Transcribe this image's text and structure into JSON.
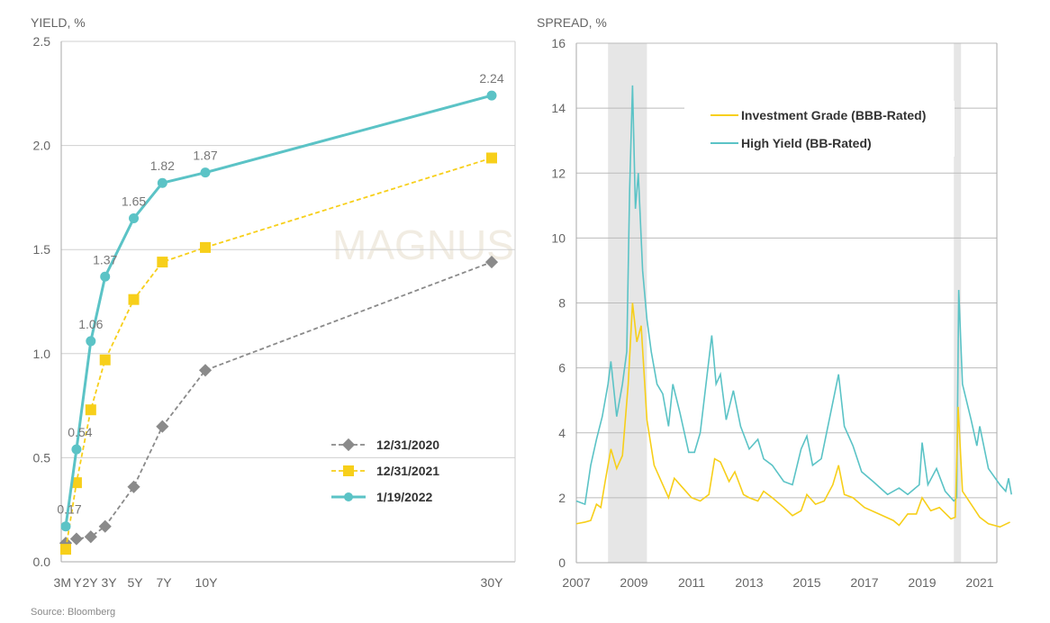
{
  "source": "Source: Bloomberg",
  "watermark": "MAGNUS",
  "colors": {
    "teal": "#5bc3c6",
    "yellow": "#f7cf1a",
    "gray": "#8a8a8a",
    "grid": "#c8c8c8",
    "recession": "#e4e4e4"
  },
  "chart_data": [
    {
      "type": "line",
      "title": "YIELD, %",
      "xlabel": "",
      "ylabel": "YIELD, %",
      "ylim": [
        0,
        2.5
      ],
      "yticks": [
        "0.0",
        "0.5",
        "1.0",
        "1.5",
        "2.0",
        "2.5"
      ],
      "x_years": [
        0.25,
        1,
        2,
        3,
        5,
        7,
        10,
        30
      ],
      "tick_labels": [
        "3M",
        "Y",
        "2Y",
        "3Y",
        "5Y",
        "7Y",
        "10Y",
        "30Y"
      ],
      "legend_position": "bottom-right",
      "series": [
        {
          "name": "12/31/2020",
          "color": "#8a8a8a",
          "marker": "diamond",
          "dashed": true,
          "values": [
            0.09,
            0.11,
            0.12,
            0.17,
            0.36,
            0.65,
            0.92,
            1.44
          ]
        },
        {
          "name": "12/31/2021",
          "color": "#f7cf1a",
          "marker": "square",
          "dashed": true,
          "values": [
            0.06,
            0.38,
            0.73,
            0.97,
            1.26,
            1.44,
            1.51,
            1.94
          ]
        },
        {
          "name": "1/19/2022",
          "color": "#5bc3c6",
          "marker": "circle",
          "dashed": false,
          "values": [
            0.17,
            0.54,
            1.06,
            1.37,
            1.65,
            1.82,
            1.87,
            2.24
          ],
          "labels": [
            "0.17",
            "0.54",
            "1.06",
            "1.37",
            "1.65",
            "1.82",
            "1.87",
            "2.24"
          ]
        }
      ]
    },
    {
      "type": "line",
      "title": "SPREAD, %",
      "xlabel": "",
      "ylabel": "SPREAD, %",
      "ylim": [
        0,
        16
      ],
      "xlim": [
        2007,
        2022.6
      ],
      "yticks": [
        "0",
        "2",
        "4",
        "6",
        "8",
        "10",
        "12",
        "14",
        "16"
      ],
      "xticks": [
        "2007",
        "2009",
        "2011",
        "2013",
        "2015",
        "2017",
        "2019",
        "2021"
      ],
      "legend_position": "top-center",
      "recessions": [
        [
          2008.1,
          2009.45
        ],
        [
          2020.1,
          2020.35
        ]
      ],
      "series": [
        {
          "name": "Investment Grade (BBB-Rated)",
          "color": "#f7cf1a",
          "points": [
            [
              2007.0,
              1.2
            ],
            [
              2007.3,
              1.25
            ],
            [
              2007.5,
              1.3
            ],
            [
              2007.7,
              1.8
            ],
            [
              2007.85,
              1.7
            ],
            [
              2008.0,
              2.5
            ],
            [
              2008.2,
              3.5
            ],
            [
              2008.4,
              2.9
            ],
            [
              2008.6,
              3.3
            ],
            [
              2008.8,
              5.5
            ],
            [
              2008.95,
              8.0
            ],
            [
              2009.1,
              6.8
            ],
            [
              2009.25,
              7.3
            ],
            [
              2009.45,
              4.4
            ],
            [
              2009.7,
              3.0
            ],
            [
              2010.0,
              2.4
            ],
            [
              2010.2,
              2.0
            ],
            [
              2010.4,
              2.6
            ],
            [
              2010.7,
              2.3
            ],
            [
              2011.0,
              2.0
            ],
            [
              2011.3,
              1.9
            ],
            [
              2011.6,
              2.1
            ],
            [
              2011.8,
              3.2
            ],
            [
              2012.0,
              3.1
            ],
            [
              2012.3,
              2.5
            ],
            [
              2012.5,
              2.8
            ],
            [
              2012.8,
              2.1
            ],
            [
              2013.0,
              2.0
            ],
            [
              2013.3,
              1.9
            ],
            [
              2013.5,
              2.2
            ],
            [
              2013.8,
              2.0
            ],
            [
              2014.2,
              1.7
            ],
            [
              2014.5,
              1.45
            ],
            [
              2014.8,
              1.6
            ],
            [
              2015.0,
              2.1
            ],
            [
              2015.3,
              1.8
            ],
            [
              2015.6,
              1.9
            ],
            [
              2015.9,
              2.4
            ],
            [
              2016.1,
              3.0
            ],
            [
              2016.3,
              2.1
            ],
            [
              2016.6,
              2.0
            ],
            [
              2017.0,
              1.7
            ],
            [
              2017.5,
              1.5
            ],
            [
              2018.0,
              1.3
            ],
            [
              2018.2,
              1.15
            ],
            [
              2018.5,
              1.5
            ],
            [
              2018.8,
              1.5
            ],
            [
              2019.0,
              2.0
            ],
            [
              2019.3,
              1.6
            ],
            [
              2019.6,
              1.7
            ],
            [
              2020.0,
              1.35
            ],
            [
              2020.15,
              1.4
            ],
            [
              2020.25,
              4.8
            ],
            [
              2020.4,
              2.2
            ],
            [
              2020.7,
              1.8
            ],
            [
              2021.0,
              1.4
            ],
            [
              2021.3,
              1.2
            ],
            [
              2021.7,
              1.1
            ],
            [
              2022.05,
              1.25
            ]
          ]
        },
        {
          "name": "High Yield (BB-Rated)",
          "color": "#5bc3c6",
          "points": [
            [
              2007.0,
              1.9
            ],
            [
              2007.3,
              1.8
            ],
            [
              2007.5,
              3.0
            ],
            [
              2007.7,
              3.8
            ],
            [
              2007.9,
              4.5
            ],
            [
              2008.1,
              5.5
            ],
            [
              2008.2,
              6.2
            ],
            [
              2008.4,
              4.5
            ],
            [
              2008.6,
              5.5
            ],
            [
              2008.75,
              6.5
            ],
            [
              2008.85,
              11.5
            ],
            [
              2008.95,
              14.7
            ],
            [
              2009.05,
              10.9
            ],
            [
              2009.15,
              12.0
            ],
            [
              2009.3,
              9.0
            ],
            [
              2009.45,
              7.5
            ],
            [
              2009.6,
              6.5
            ],
            [
              2009.8,
              5.5
            ],
            [
              2010.0,
              5.2
            ],
            [
              2010.2,
              4.2
            ],
            [
              2010.35,
              5.5
            ],
            [
              2010.6,
              4.6
            ],
            [
              2010.9,
              3.4
            ],
            [
              2011.1,
              3.4
            ],
            [
              2011.3,
              4.0
            ],
            [
              2011.5,
              5.5
            ],
            [
              2011.7,
              7.0
            ],
            [
              2011.85,
              5.5
            ],
            [
              2012.0,
              5.8
            ],
            [
              2012.2,
              4.4
            ],
            [
              2012.45,
              5.3
            ],
            [
              2012.7,
              4.2
            ],
            [
              2013.0,
              3.5
            ],
            [
              2013.3,
              3.8
            ],
            [
              2013.5,
              3.2
            ],
            [
              2013.8,
              3.0
            ],
            [
              2014.2,
              2.5
            ],
            [
              2014.5,
              2.4
            ],
            [
              2014.8,
              3.5
            ],
            [
              2015.0,
              3.9
            ],
            [
              2015.2,
              3.0
            ],
            [
              2015.5,
              3.2
            ],
            [
              2015.8,
              4.5
            ],
            [
              2016.1,
              5.8
            ],
            [
              2016.3,
              4.2
            ],
            [
              2016.6,
              3.6
            ],
            [
              2016.9,
              2.8
            ],
            [
              2017.3,
              2.5
            ],
            [
              2017.8,
              2.1
            ],
            [
              2018.2,
              2.3
            ],
            [
              2018.5,
              2.1
            ],
            [
              2018.9,
              2.4
            ],
            [
              2019.0,
              3.7
            ],
            [
              2019.2,
              2.4
            ],
            [
              2019.5,
              2.9
            ],
            [
              2019.8,
              2.2
            ],
            [
              2020.1,
              1.9
            ],
            [
              2020.2,
              2.0
            ],
            [
              2020.27,
              8.4
            ],
            [
              2020.4,
              5.5
            ],
            [
              2020.7,
              4.4
            ],
            [
              2020.9,
              3.6
            ],
            [
              2021.0,
              4.2
            ],
            [
              2021.3,
              2.9
            ],
            [
              2021.7,
              2.4
            ],
            [
              2021.9,
              2.2
            ],
            [
              2022.0,
              2.6
            ],
            [
              2022.1,
              2.1
            ]
          ]
        }
      ]
    }
  ]
}
